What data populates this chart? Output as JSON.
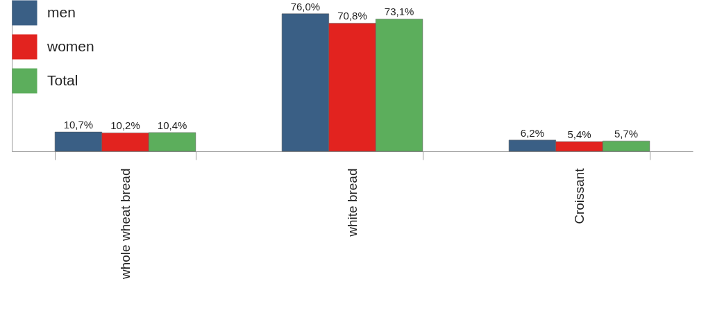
{
  "chart_data": {
    "type": "bar",
    "categories": [
      "whole wheat bread",
      "white bread",
      "Croissant"
    ],
    "series": [
      {
        "name": "men",
        "color": "#3a5f85",
        "values": [
          10.7,
          76.0,
          6.2
        ],
        "value_labels": [
          "10,7%",
          "76,0%",
          "6,2%"
        ]
      },
      {
        "name": "women",
        "color": "#e2231f",
        "values": [
          10.2,
          70.8,
          5.4
        ],
        "value_labels": [
          "10,2%",
          "70,8%",
          "5,4%"
        ]
      },
      {
        "name": "Total",
        "color": "#5cae5c",
        "values": [
          10.4,
          73.1,
          5.7
        ],
        "value_labels": [
          "10,4%",
          "73,1%",
          "5,7%"
        ]
      }
    ],
    "legend": "top left",
    "grid": false
  }
}
